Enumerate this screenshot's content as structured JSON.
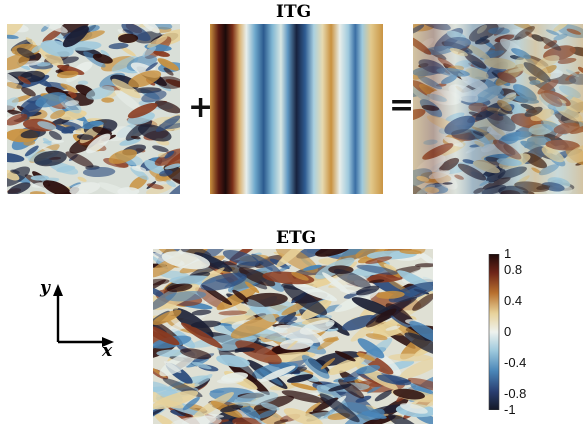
{
  "panels": {
    "itg_title": "ITG",
    "etg_title": "ETG",
    "plus_sign": "+",
    "equals_sign": "="
  },
  "colorbar": {
    "ticks": [
      "1",
      "0.8",
      "0.4",
      "0",
      "-0.4",
      "-0.8",
      "-1"
    ],
    "tick_values": [
      1,
      0.8,
      0.4,
      0,
      -0.4,
      -0.8,
      -1
    ],
    "range": [
      -1,
      1
    ]
  },
  "axes": {
    "x_label": "x",
    "y_label": "y"
  },
  "colormap": [
    "#1b1f35",
    "#2b4a7c",
    "#4a86b8",
    "#9ec9dd",
    "#e8eeea",
    "#e8d29a",
    "#c9913e",
    "#8a3a1f",
    "#2a0d0c"
  ]
}
